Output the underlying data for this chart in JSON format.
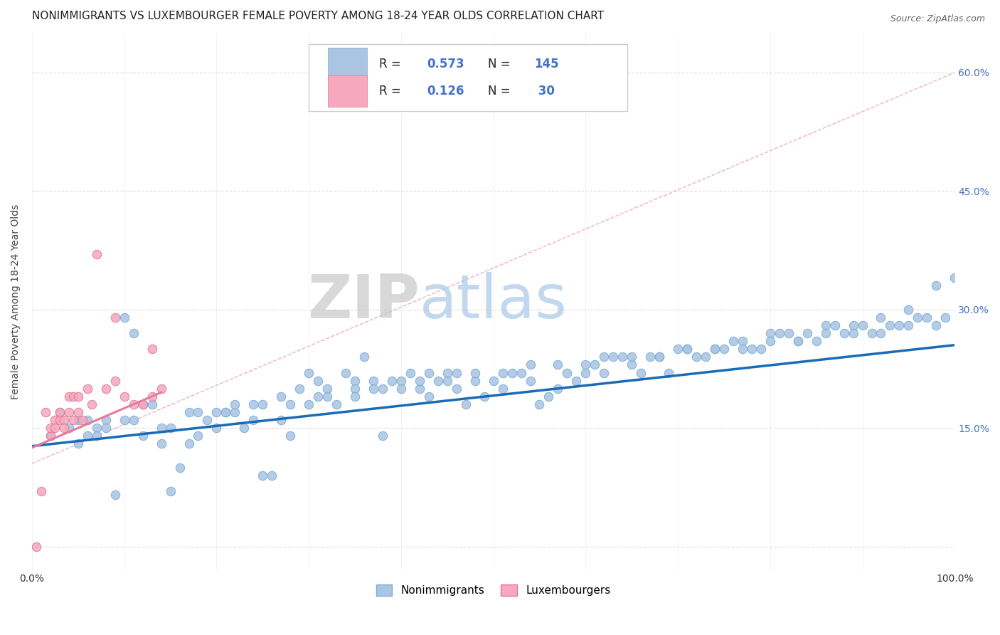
{
  "title": "NONIMMIGRANTS VS LUXEMBOURGER FEMALE POVERTY AMONG 18-24 YEAR OLDS CORRELATION CHART",
  "source": "Source: ZipAtlas.com",
  "ylabel_label": "Female Poverty Among 18-24 Year Olds",
  "watermark_zip": "ZIP",
  "watermark_atlas": "atlas",
  "background_color": "#ffffff",
  "grid_color": "#dddddd",
  "nonimmigrants": {
    "x": [
      0.02,
      0.03,
      0.04,
      0.05,
      0.05,
      0.06,
      0.06,
      0.07,
      0.07,
      0.08,
      0.09,
      0.1,
      0.11,
      0.12,
      0.13,
      0.14,
      0.15,
      0.16,
      0.17,
      0.18,
      0.19,
      0.2,
      0.21,
      0.22,
      0.23,
      0.24,
      0.25,
      0.26,
      0.27,
      0.28,
      0.29,
      0.3,
      0.31,
      0.32,
      0.33,
      0.34,
      0.35,
      0.36,
      0.37,
      0.38,
      0.39,
      0.4,
      0.41,
      0.42,
      0.43,
      0.44,
      0.45,
      0.46,
      0.47,
      0.48,
      0.49,
      0.5,
      0.51,
      0.52,
      0.53,
      0.54,
      0.55,
      0.56,
      0.57,
      0.58,
      0.59,
      0.6,
      0.61,
      0.62,
      0.63,
      0.64,
      0.65,
      0.66,
      0.67,
      0.68,
      0.69,
      0.7,
      0.71,
      0.72,
      0.73,
      0.74,
      0.75,
      0.76,
      0.77,
      0.78,
      0.79,
      0.8,
      0.81,
      0.82,
      0.83,
      0.84,
      0.85,
      0.86,
      0.87,
      0.88,
      0.89,
      0.9,
      0.91,
      0.92,
      0.93,
      0.94,
      0.95,
      0.96,
      0.97,
      0.98,
      0.99,
      1.0,
      0.1,
      0.12,
      0.15,
      0.17,
      0.2,
      0.22,
      0.25,
      0.27,
      0.3,
      0.32,
      0.35,
      0.37,
      0.4,
      0.43,
      0.46,
      0.48,
      0.51,
      0.54,
      0.57,
      0.6,
      0.62,
      0.65,
      0.68,
      0.71,
      0.74,
      0.77,
      0.8,
      0.83,
      0.86,
      0.89,
      0.92,
      0.95,
      0.98,
      0.08,
      0.11,
      0.14,
      0.18,
      0.21,
      0.24,
      0.28,
      0.31,
      0.35,
      0.38,
      0.42,
      0.45
    ],
    "y": [
      0.14,
      0.17,
      0.15,
      0.13,
      0.16,
      0.14,
      0.16,
      0.15,
      0.14,
      0.16,
      0.065,
      0.29,
      0.27,
      0.14,
      0.18,
      0.13,
      0.07,
      0.1,
      0.13,
      0.14,
      0.16,
      0.15,
      0.17,
      0.17,
      0.15,
      0.16,
      0.09,
      0.09,
      0.16,
      0.14,
      0.2,
      0.22,
      0.21,
      0.2,
      0.18,
      0.22,
      0.21,
      0.24,
      0.21,
      0.14,
      0.21,
      0.21,
      0.22,
      0.2,
      0.19,
      0.21,
      0.22,
      0.2,
      0.18,
      0.21,
      0.19,
      0.21,
      0.2,
      0.22,
      0.22,
      0.21,
      0.18,
      0.19,
      0.2,
      0.22,
      0.21,
      0.22,
      0.23,
      0.22,
      0.24,
      0.24,
      0.23,
      0.22,
      0.24,
      0.24,
      0.22,
      0.25,
      0.25,
      0.24,
      0.24,
      0.25,
      0.25,
      0.26,
      0.26,
      0.25,
      0.25,
      0.27,
      0.27,
      0.27,
      0.26,
      0.27,
      0.26,
      0.28,
      0.28,
      0.27,
      0.28,
      0.28,
      0.27,
      0.29,
      0.28,
      0.28,
      0.3,
      0.29,
      0.29,
      0.33,
      0.29,
      0.34,
      0.16,
      0.18,
      0.15,
      0.17,
      0.17,
      0.18,
      0.18,
      0.19,
      0.18,
      0.19,
      0.2,
      0.2,
      0.2,
      0.22,
      0.22,
      0.22,
      0.22,
      0.23,
      0.23,
      0.23,
      0.24,
      0.24,
      0.24,
      0.25,
      0.25,
      0.25,
      0.26,
      0.26,
      0.27,
      0.27,
      0.27,
      0.28,
      0.28,
      0.15,
      0.16,
      0.15,
      0.17,
      0.17,
      0.18,
      0.18,
      0.19,
      0.19,
      0.2,
      0.21,
      0.21
    ]
  },
  "luxembourgers": {
    "x": [
      0.005,
      0.01,
      0.015,
      0.02,
      0.02,
      0.025,
      0.025,
      0.03,
      0.03,
      0.035,
      0.035,
      0.04,
      0.04,
      0.045,
      0.045,
      0.05,
      0.05,
      0.055,
      0.06,
      0.065,
      0.07,
      0.08,
      0.09,
      0.1,
      0.11,
      0.12,
      0.13,
      0.14,
      0.13,
      0.09
    ],
    "y": [
      0.0,
      0.07,
      0.17,
      0.14,
      0.15,
      0.16,
      0.15,
      0.17,
      0.16,
      0.16,
      0.15,
      0.19,
      0.17,
      0.19,
      0.16,
      0.19,
      0.17,
      0.16,
      0.2,
      0.18,
      0.37,
      0.2,
      0.21,
      0.19,
      0.18,
      0.18,
      0.19,
      0.2,
      0.25,
      0.29
    ]
  },
  "nonimmigrants_line": {
    "x0": 0.0,
    "y0": 0.127,
    "x1": 1.0,
    "y1": 0.255
  },
  "luxembourgers_line": {
    "x0": 0.0,
    "y0": 0.105,
    "x1": 1.0,
    "y1": 0.6
  },
  "xlim": [
    0.0,
    1.0
  ],
  "ylim": [
    -0.03,
    0.65
  ],
  "title_fontsize": 11,
  "nonimmigrant_color": "#aac4e2",
  "nonimmigrant_edge": "#7aadd4",
  "luxembourger_color": "#f5a8be",
  "luxembourger_edge": "#e07898",
  "regression_blue": "#1a6bb5",
  "regression_pink": "#e87a9a",
  "rvalue_color": "#4472c4",
  "label_color": "#333333"
}
